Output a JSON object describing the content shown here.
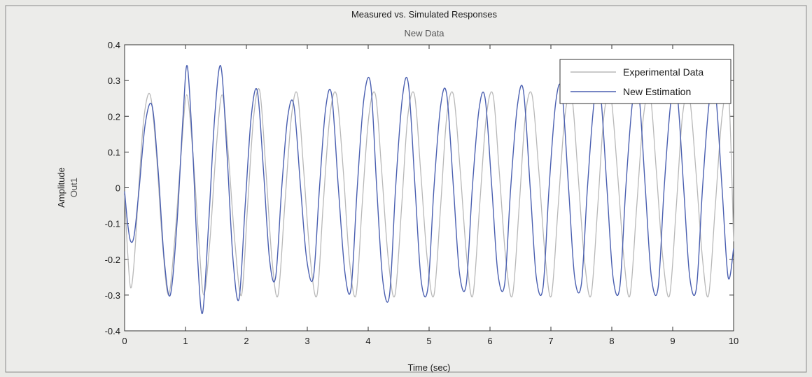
{
  "chart_data": {
    "type": "line",
    "title": "Measured vs. Simulated Responses",
    "subtitle": "New Data",
    "xlabel": "Time (sec)",
    "ylabel": "Amplitude",
    "ylabel_sub": "Out1",
    "xlim": [
      0,
      10
    ],
    "ylim": [
      -0.4,
      0.4
    ],
    "xticks": [
      0,
      1,
      2,
      3,
      4,
      5,
      6,
      7,
      8,
      9,
      10
    ],
    "xtick_labels": [
      "0",
      "1",
      "2",
      "3",
      "4",
      "5",
      "6",
      "7",
      "8",
      "9",
      "10"
    ],
    "yticks": [
      -0.4,
      -0.3,
      -0.2,
      -0.1,
      0,
      0.1,
      0.2,
      0.3,
      0.4
    ],
    "ytick_labels": [
      "-0.4",
      "-0.3",
      "-0.2",
      "-0.1",
      "0",
      "0.1",
      "0.2",
      "0.3",
      "0.4"
    ],
    "grid": false,
    "legend_position": "top-right",
    "series": [
      {
        "name": "Experimental Data",
        "color": "#b8b8b8",
        "x": [
          0,
          0.05,
          0.1,
          0.16,
          0.24,
          0.32,
          0.42,
          0.52,
          0.62,
          0.72,
          0.82,
          0.93,
          1.02,
          1.12,
          1.22,
          1.3,
          1.4,
          1.5,
          1.6,
          1.7,
          1.81,
          1.92,
          2.02,
          2.12,
          2.22,
          2.32,
          2.42,
          2.52,
          2.63,
          2.74,
          2.84,
          2.94,
          3.05,
          3.16,
          3.26,
          3.37,
          3.48,
          3.59,
          3.69,
          3.8,
          3.9,
          4.01,
          4.12,
          4.22,
          4.33,
          4.44,
          4.55,
          4.65,
          4.76,
          4.86,
          4.97,
          5.08,
          5.19,
          5.29,
          5.4,
          5.51,
          5.62,
          5.72,
          5.83,
          5.94,
          6.05,
          6.15,
          6.26,
          6.37,
          6.48,
          6.58,
          6.69,
          6.8,
          6.91,
          7.01,
          7.12,
          7.23,
          7.34,
          7.44,
          7.55,
          7.66,
          7.77,
          7.87,
          7.98,
          8.09,
          8.2,
          8.3,
          8.41,
          8.52,
          8.63,
          8.73,
          8.84,
          8.95,
          9.06,
          9.16,
          9.27,
          9.38,
          9.49,
          9.59,
          9.7,
          9.81,
          9.92,
          10
        ],
        "y": [
          -0.02,
          -0.18,
          -0.28,
          -0.2,
          0.02,
          0.2,
          0.26,
          0.1,
          -0.15,
          -0.3,
          -0.15,
          0.1,
          0.26,
          0.1,
          -0.15,
          -0.3,
          -0.15,
          0.1,
          0.26,
          0.1,
          -0.15,
          -0.3,
          -0.05,
          0.2,
          0.27,
          0.05,
          -0.2,
          -0.3,
          -0.05,
          0.2,
          0.26,
          0.05,
          -0.2,
          -0.3,
          -0.05,
          0.2,
          0.26,
          0.05,
          -0.2,
          -0.3,
          -0.05,
          0.2,
          0.26,
          0.05,
          -0.2,
          -0.3,
          -0.05,
          0.2,
          0.26,
          0.05,
          -0.2,
          -0.3,
          -0.05,
          0.2,
          0.26,
          0.05,
          -0.2,
          -0.3,
          -0.05,
          0.2,
          0.26,
          0.05,
          -0.2,
          -0.3,
          -0.05,
          0.2,
          0.26,
          0.05,
          -0.2,
          -0.3,
          -0.05,
          0.2,
          0.26,
          0.05,
          -0.2,
          -0.3,
          -0.05,
          0.2,
          0.26,
          0.05,
          -0.2,
          -0.3,
          -0.05,
          0.2,
          0.26,
          0.05,
          -0.2,
          -0.3,
          -0.05,
          0.2,
          0.26,
          0.05,
          -0.2,
          -0.3,
          -0.05,
          0.2,
          0.26,
          -0.15
        ]
      },
      {
        "name": "New Estimation",
        "color": "#4a5fb0",
        "x": [
          0,
          0.05,
          0.1,
          0.16,
          0.24,
          0.34,
          0.45,
          0.55,
          0.65,
          0.75,
          0.86,
          0.96,
          1.03,
          1.12,
          1.2,
          1.28,
          1.38,
          1.48,
          1.58,
          1.68,
          1.78,
          1.88,
          1.98,
          2.08,
          2.18,
          2.28,
          2.38,
          2.48,
          2.58,
          2.68,
          2.78,
          2.89,
          2.99,
          3.1,
          3.2,
          3.3,
          3.4,
          3.51,
          3.62,
          3.72,
          3.82,
          3.93,
          4.04,
          4.14,
          4.24,
          4.35,
          4.45,
          4.56,
          4.66,
          4.77,
          4.87,
          4.98,
          5.08,
          5.19,
          5.29,
          5.4,
          5.5,
          5.61,
          5.71,
          5.82,
          5.92,
          6.03,
          6.13,
          6.24,
          6.34,
          6.45,
          6.55,
          6.66,
          6.76,
          6.87,
          6.97,
          7.08,
          7.18,
          7.29,
          7.39,
          7.5,
          7.6,
          7.71,
          7.81,
          7.92,
          8.02,
          8.13,
          8.23,
          8.34,
          8.44,
          8.55,
          8.65,
          8.76,
          8.86,
          8.97,
          9.07,
          9.18,
          9.28,
          9.39,
          9.49,
          9.6,
          9.7,
          9.81,
          9.91,
          10
        ],
        "y": [
          -0.01,
          -0.1,
          -0.15,
          -0.13,
          0.0,
          0.18,
          0.23,
          0.05,
          -0.2,
          -0.3,
          -0.1,
          0.2,
          0.34,
          0.1,
          -0.2,
          -0.35,
          -0.1,
          0.2,
          0.34,
          0.1,
          -0.2,
          -0.31,
          -0.05,
          0.2,
          0.27,
          0.05,
          -0.2,
          -0.25,
          0.0,
          0.2,
          0.23,
          0.0,
          -0.2,
          -0.25,
          0.0,
          0.22,
          0.26,
          0.0,
          -0.24,
          -0.28,
          0.0,
          0.25,
          0.29,
          0.0,
          -0.26,
          -0.3,
          0.0,
          0.25,
          0.29,
          0.0,
          -0.26,
          -0.28,
          0.0,
          0.23,
          0.26,
          0.0,
          -0.24,
          -0.27,
          0.0,
          0.22,
          0.25,
          0.0,
          -0.24,
          -0.27,
          0.0,
          0.23,
          0.27,
          0.0,
          -0.25,
          -0.28,
          0.0,
          0.24,
          0.27,
          0.0,
          -0.25,
          -0.27,
          0.0,
          0.24,
          0.27,
          0.0,
          -0.25,
          -0.28,
          0.0,
          0.24,
          0.27,
          0.0,
          -0.25,
          -0.28,
          0.0,
          0.24,
          0.27,
          0.0,
          -0.25,
          -0.28,
          0.0,
          0.24,
          0.27,
          0.0,
          -0.25,
          -0.17
        ]
      }
    ]
  }
}
